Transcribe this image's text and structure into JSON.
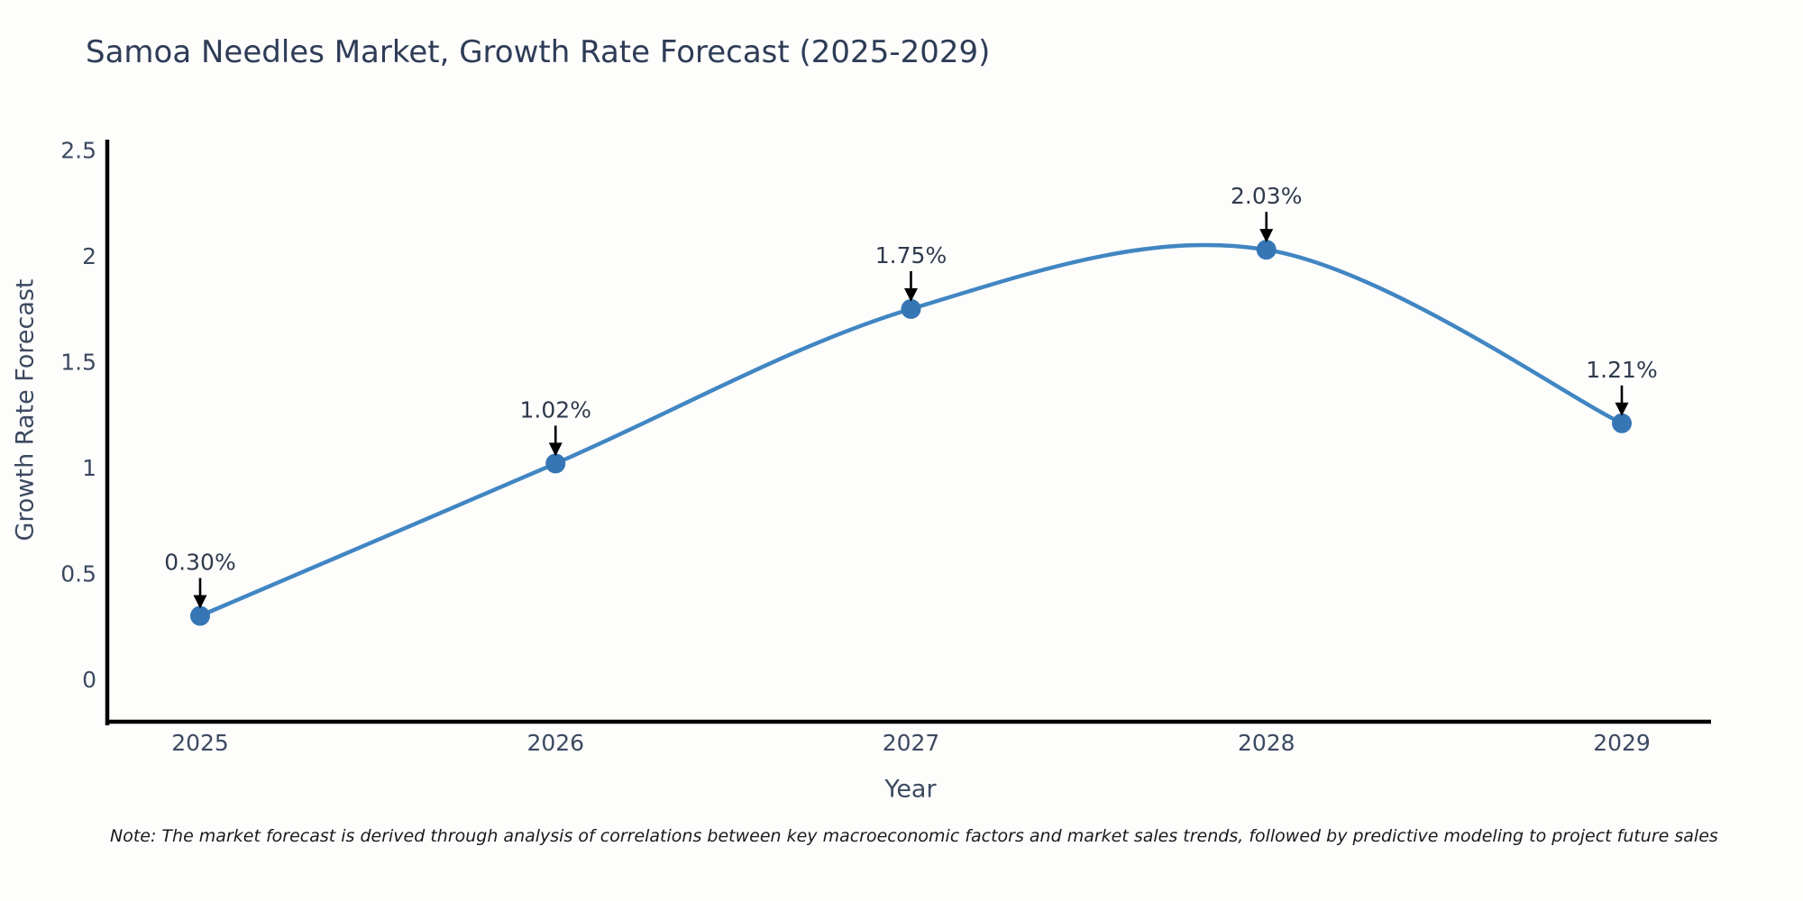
{
  "chart_data": {
    "type": "line",
    "title": "Samoa Needles Market, Growth Rate Forecast (2025-2029)",
    "xlabel": "Year",
    "ylabel": "Growth Rate Forecast",
    "categories": [
      "2025",
      "2026",
      "2027",
      "2028",
      "2029"
    ],
    "series": [
      {
        "name": "Growth Rate Forecast",
        "values": [
          0.3,
          1.02,
          1.75,
          2.03,
          1.21
        ],
        "point_labels": [
          "0.30%",
          "1.02%",
          "1.75%",
          "2.03%",
          "1.21%"
        ]
      }
    ],
    "line_shape": "spline",
    "markers": true,
    "annotations_style": "label-with-down-arrow",
    "yticks": [
      0,
      0.5,
      1,
      1.5,
      2,
      2.5
    ],
    "ytick_labels": [
      "0",
      "0.5",
      "1",
      "1.5",
      "2",
      "2.5"
    ],
    "ylim": [
      -0.2,
      2.55
    ],
    "grid": false,
    "legend": false,
    "colors": {
      "line": "#4186c2",
      "marker": "#3676b4",
      "axis": "#000000",
      "tick_text": "#3c4a60",
      "label_text": "#2f3b4c",
      "arrow": "#000000"
    }
  },
  "note": {
    "text": "Note: The market forecast is derived through analysis of correlations between key macroeconomic factors and market sales trends, followed by predictive modeling to project future sales"
  }
}
